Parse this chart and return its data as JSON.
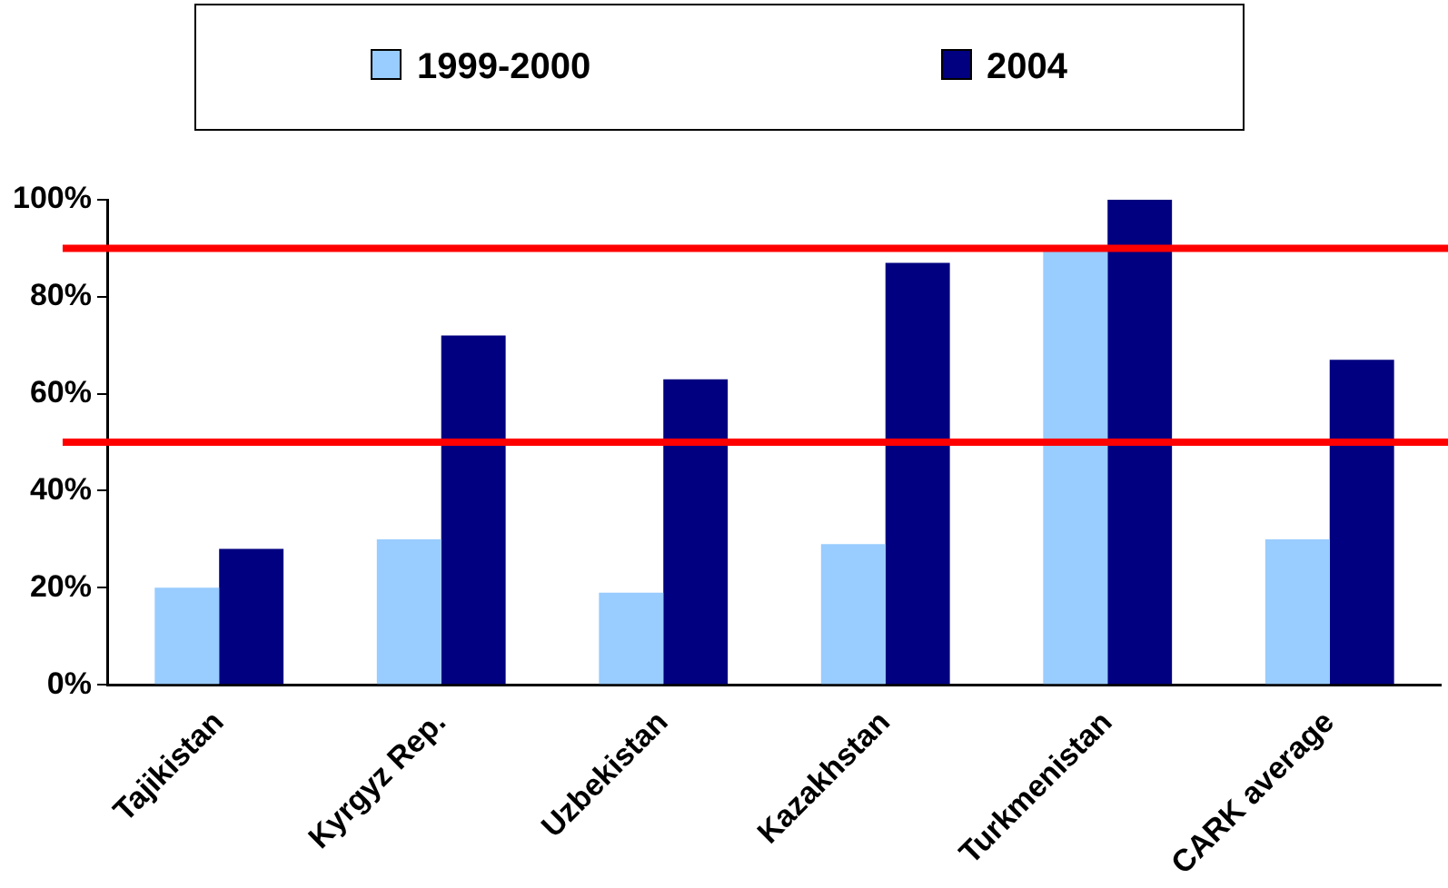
{
  "chart_data": {
    "type": "bar",
    "categories": [
      "Tajikistan",
      "Kyrgyz Rep.",
      "Uzbekistan",
      "Kazakhstan",
      "Turkmenistan",
      "CARK average"
    ],
    "series": [
      {
        "name": "1999-2000",
        "color": "#99ccff",
        "values": [
          20,
          30,
          19,
          29,
          90,
          30
        ]
      },
      {
        "name": "2004",
        "color": "#000080",
        "values": [
          28,
          72,
          63,
          87,
          100,
          67
        ]
      }
    ],
    "ylim": [
      0,
      100
    ],
    "yticks": [
      {
        "value": 0,
        "label": "0%"
      },
      {
        "value": 20,
        "label": "20%"
      },
      {
        "value": 40,
        "label": "40%"
      },
      {
        "value": 60,
        "label": "60%"
      },
      {
        "value": 80,
        "label": "80%"
      },
      {
        "value": 100,
        "label": "100%"
      }
    ],
    "ref_lines": [
      {
        "axis": "y",
        "value": 90,
        "color": "#ff0000"
      },
      {
        "axis": "y",
        "value": 50,
        "color": "#ff0000"
      }
    ],
    "grid": false,
    "legend": "top"
  }
}
